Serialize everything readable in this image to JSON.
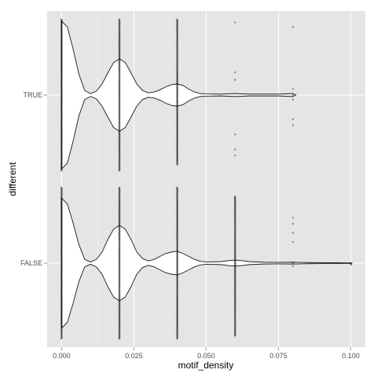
{
  "chart_data": {
    "type": "violin",
    "xlabel": "motif_density",
    "ylabel": "different",
    "xlim": [
      -0.005,
      0.105
    ],
    "x_ticks": [
      0.0,
      0.025,
      0.05,
      0.075,
      0.1
    ],
    "x_tick_labels": [
      "0.000",
      "0.025",
      "0.050",
      "0.075",
      "0.100"
    ],
    "categories": [
      "TRUE",
      "FALSE"
    ],
    "panel_background": "#e5e5e5",
    "grid": true,
    "series": [
      {
        "category": "TRUE",
        "density": [
          [
            0.0,
            1.0
          ],
          [
            0.002,
            0.92
          ],
          [
            0.004,
            0.62
          ],
          [
            0.006,
            0.28
          ],
          [
            0.008,
            0.06
          ],
          [
            0.01,
            0.02
          ],
          [
            0.012,
            0.05
          ],
          [
            0.014,
            0.15
          ],
          [
            0.016,
            0.3
          ],
          [
            0.018,
            0.44
          ],
          [
            0.02,
            0.49
          ],
          [
            0.022,
            0.44
          ],
          [
            0.024,
            0.3
          ],
          [
            0.026,
            0.15
          ],
          [
            0.028,
            0.06
          ],
          [
            0.03,
            0.03
          ],
          [
            0.032,
            0.04
          ],
          [
            0.034,
            0.07
          ],
          [
            0.036,
            0.11
          ],
          [
            0.038,
            0.14
          ],
          [
            0.04,
            0.15
          ],
          [
            0.042,
            0.13
          ],
          [
            0.044,
            0.08
          ],
          [
            0.046,
            0.04
          ],
          [
            0.048,
            0.02
          ],
          [
            0.05,
            0.015
          ],
          [
            0.055,
            0.012
          ],
          [
            0.06,
            0.02
          ],
          [
            0.065,
            0.012
          ],
          [
            0.07,
            0.012
          ],
          [
            0.075,
            0.012
          ],
          [
            0.08,
            0.02
          ],
          [
            0.081,
            0.0
          ]
        ],
        "points": [
          {
            "x": 0.0,
            "y": [
              -0.5,
              0.5
            ]
          },
          {
            "x": 0.02,
            "y": [
              -0.5,
              0.5
            ]
          },
          {
            "x": 0.04,
            "y": [
              -0.5,
              0.46
            ]
          },
          {
            "x": 0.06,
            "y": [
              -0.48,
              -0.15,
              -0.1,
              0.26,
              0.36,
              0.4
            ]
          },
          {
            "x": 0.08,
            "y": [
              -0.45,
              -0.04,
              0.0,
              0.03,
              0.16,
              0.2
            ]
          }
        ]
      },
      {
        "category": "FALSE",
        "density": [
          [
            0.0,
            0.88
          ],
          [
            0.002,
            0.8
          ],
          [
            0.004,
            0.54
          ],
          [
            0.006,
            0.25
          ],
          [
            0.008,
            0.05
          ],
          [
            0.01,
            0.015
          ],
          [
            0.012,
            0.05
          ],
          [
            0.014,
            0.15
          ],
          [
            0.016,
            0.32
          ],
          [
            0.018,
            0.46
          ],
          [
            0.02,
            0.51
          ],
          [
            0.022,
            0.46
          ],
          [
            0.024,
            0.32
          ],
          [
            0.026,
            0.15
          ],
          [
            0.028,
            0.06
          ],
          [
            0.03,
            0.03
          ],
          [
            0.032,
            0.05
          ],
          [
            0.034,
            0.09
          ],
          [
            0.036,
            0.13
          ],
          [
            0.038,
            0.15
          ],
          [
            0.04,
            0.16
          ],
          [
            0.042,
            0.13
          ],
          [
            0.044,
            0.09
          ],
          [
            0.046,
            0.05
          ],
          [
            0.048,
            0.025
          ],
          [
            0.05,
            0.015
          ],
          [
            0.055,
            0.02
          ],
          [
            0.058,
            0.035
          ],
          [
            0.06,
            0.04
          ],
          [
            0.062,
            0.035
          ],
          [
            0.065,
            0.02
          ],
          [
            0.07,
            0.012
          ],
          [
            0.075,
            0.01
          ],
          [
            0.08,
            0.012
          ],
          [
            0.085,
            0.008
          ],
          [
            0.09,
            0.006
          ],
          [
            0.095,
            0.004
          ],
          [
            0.1,
            0.003
          ],
          [
            0.1005,
            0.0
          ]
        ],
        "points": [
          {
            "x": 0.0,
            "y": [
              -0.5,
              0.5
            ]
          },
          {
            "x": 0.02,
            "y": [
              -0.5,
              0.5
            ]
          },
          {
            "x": 0.04,
            "y": [
              -0.5,
              0.5
            ]
          },
          {
            "x": 0.06,
            "y": [
              -0.44,
              0.48
            ]
          },
          {
            "x": 0.08,
            "y": [
              -0.3,
              -0.26,
              -0.2,
              -0.14,
              0.0,
              0.02
            ]
          },
          {
            "x": 0.1,
            "y": [
              0.0,
              0.01
            ]
          }
        ]
      }
    ]
  }
}
